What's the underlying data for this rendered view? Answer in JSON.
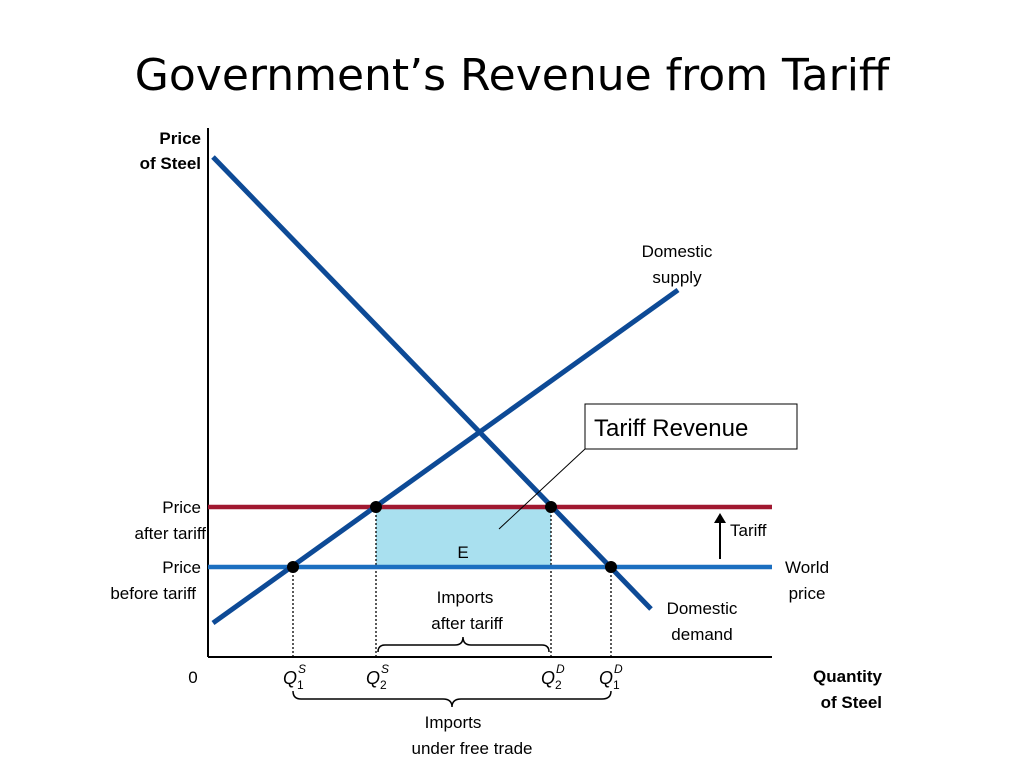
{
  "title": "Government’s Revenue from Tariff",
  "axes": {
    "y_label_line1": "Price",
    "y_label_line2": "of Steel",
    "x_label_line1": "Quantity",
    "x_label_line2": "of Steel",
    "origin": "0"
  },
  "curves": {
    "supply_line1": "Domestic",
    "supply_line2": "supply",
    "demand_line1": "Domestic",
    "demand_line2": "demand"
  },
  "prices": {
    "after_tariff_line1": "Price",
    "after_tariff_line2": "after tariff",
    "before_tariff_line1": "Price",
    "before_tariff_line2": "before tariff",
    "world_line1": "World",
    "world_line2": "price",
    "tariff": "Tariff"
  },
  "region": {
    "label": "E",
    "callout": "Tariff Revenue"
  },
  "quantities": {
    "q_symbol": "Q",
    "q1s_sub": "1",
    "q1s_sup": "S",
    "q2s_sub": "2",
    "q2s_sup": "S",
    "q2d_sub": "2",
    "q2d_sup": "D",
    "q1d_sub": "1",
    "q1d_sup": "D"
  },
  "imports": {
    "after_tariff_line1": "Imports",
    "after_tariff_line2": "after tariff",
    "free_trade_line1": "Imports",
    "free_trade_line2": "under free trade"
  },
  "colors": {
    "curve_blue": "#0d4a96",
    "world_price": "#1c6fc0",
    "tariff_price": "#a01830",
    "revenue_fill": "#a9e0ef"
  }
}
